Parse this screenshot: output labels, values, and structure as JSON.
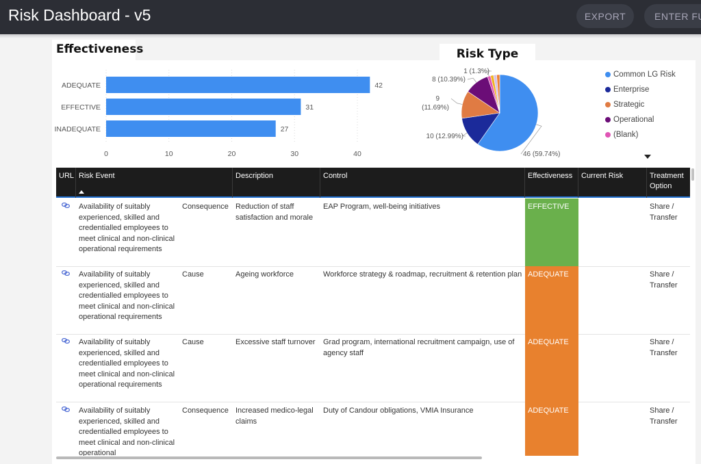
{
  "app": {
    "title": "Risk Dashboard - v5",
    "buttons": {
      "export": "EXPORT",
      "enter": "ENTER FU"
    }
  },
  "effectiveness": {
    "title": "Effectiveness"
  },
  "risk_type": {
    "title": "Risk Type",
    "legend": [
      {
        "label": "Common LG Risk",
        "color": "#3f8ef0"
      },
      {
        "label": "Enterprise",
        "color": "#1b2a9a"
      },
      {
        "label": "Strategic",
        "color": "#e07b43"
      },
      {
        "label": "Operational",
        "color": "#6b0d77"
      },
      {
        "label": "(Blank)",
        "color": "#e055b5"
      }
    ]
  },
  "chart_data": [
    {
      "type": "bar",
      "orientation": "horizontal",
      "title": "Effectiveness",
      "categories": [
        "ADEQUATE",
        "EFFECTIVE",
        "INADEQUATE"
      ],
      "values": [
        42,
        31,
        27
      ],
      "xticks": [
        "0",
        "10",
        "20",
        "30",
        "40"
      ],
      "xlim": [
        0,
        45
      ],
      "grid": true,
      "color": "#3f8ef0"
    },
    {
      "type": "pie",
      "title": "Risk Type",
      "slices": [
        {
          "label": "Common LG Risk",
          "value": 46,
          "text": "46 (59.74%)",
          "color": "#3f8ef0"
        },
        {
          "label": "Enterprise",
          "value": 10,
          "text": "10 (12.99%)",
          "color": "#1b2a9a"
        },
        {
          "label": "Strategic",
          "value": 9,
          "text": "9 (11.69%)",
          "color": "#e07b43"
        },
        {
          "label": "Operational",
          "value": 8,
          "text": "8 (10.39%)",
          "color": "#6b0d77"
        },
        {
          "label": "(Blank)",
          "value": 1,
          "text": "1 (1.3%)",
          "color": "#e055b5"
        },
        {
          "label": "",
          "value": 1,
          "color": "#f0b323"
        },
        {
          "label": "",
          "value": 1,
          "color": "#d3c1e8"
        },
        {
          "label": "",
          "value": 1,
          "color": "#f07e2f"
        }
      ],
      "legend_position": "right"
    }
  ],
  "table": {
    "headers": [
      "URL",
      "Risk Event",
      "",
      "Description",
      "Control",
      "Effectiveness",
      "Current Risk",
      "Treatment Option"
    ],
    "rows": [
      {
        "risk_event": "Availability of suitably experienced, skilled and credentialled employees to meet clinical and non-clinical operational requirements",
        "type": "Consequence",
        "description": "Reduction of staff satisfaction and morale",
        "control": "EAP Program, well-being initiatives",
        "effectiveness": "EFFECTIVE",
        "effectiveness_color": "#6ab04c",
        "current_risk": "",
        "treatment": "Share / Transfer"
      },
      {
        "risk_event": "Availability of suitably experienced, skilled and credentialled employees to meet clinical and non-clinical operational requirements",
        "type": "Cause",
        "description": "Ageing workforce",
        "control": "Workforce strategy & roadmap, recruitment & retention plan",
        "effectiveness": "ADEQUATE",
        "effectiveness_color": "#e8812e",
        "current_risk": "",
        "treatment": "Share / Transfer"
      },
      {
        "risk_event": "Availability of suitably experienced, skilled and credentialled employees to meet clinical and non-clinical operational requirements",
        "type": "Cause",
        "description": "Excessive staff turnover",
        "control": "Grad program, international recruitment campaign, use of agency staff",
        "effectiveness": "ADEQUATE",
        "effectiveness_color": "#e8812e",
        "current_risk": "",
        "treatment": "Share / Transfer"
      },
      {
        "risk_event": "Availability of suitably experienced, skilled and credentialled employees to meet clinical and non-clinical operational",
        "type": "Consequence",
        "description": "Increased medico-legal claims",
        "control": "Duty of Candour obligations, VMIA Insurance",
        "effectiveness": "ADEQUATE",
        "effectiveness_color": "#e8812e",
        "current_risk": "",
        "treatment": "Share / Transfer"
      }
    ]
  }
}
